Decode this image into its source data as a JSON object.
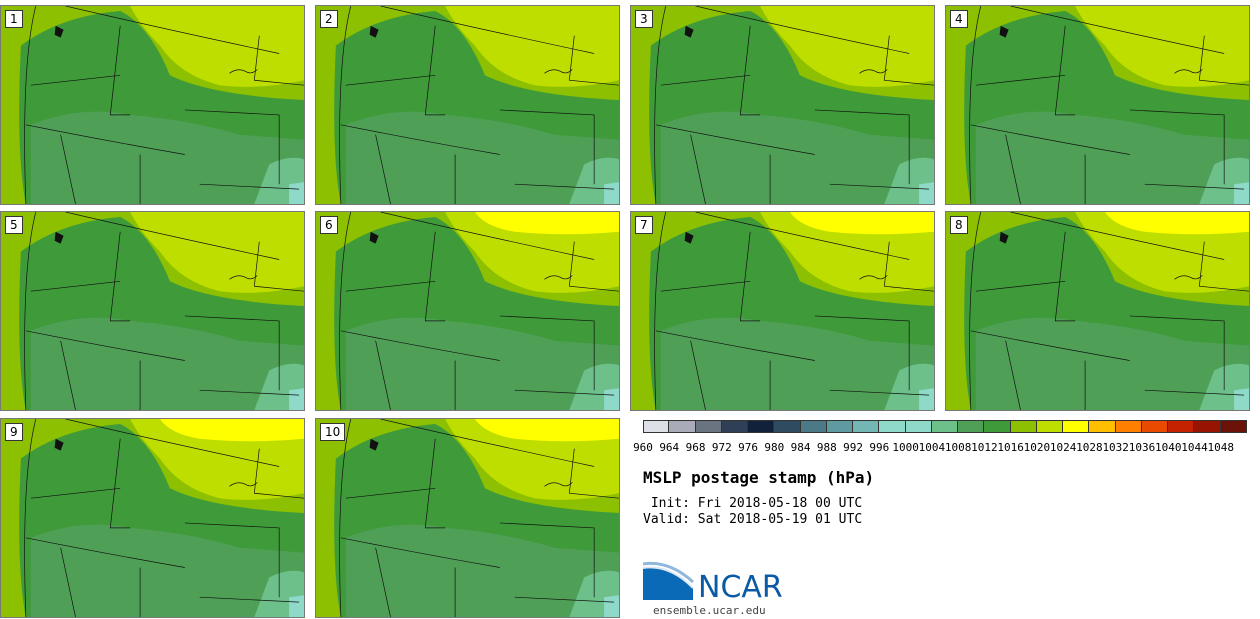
{
  "panels": [
    {
      "label": "1"
    },
    {
      "label": "2"
    },
    {
      "label": "3"
    },
    {
      "label": "4"
    },
    {
      "label": "5"
    },
    {
      "label": "6"
    },
    {
      "label": "7"
    },
    {
      "label": "8"
    },
    {
      "label": "9"
    },
    {
      "label": "10"
    }
  ],
  "colorbar": {
    "ticks": [
      "960",
      "964",
      "968",
      "972",
      "976",
      "980",
      "984",
      "988",
      "992",
      "996",
      "1000",
      "1004",
      "1008",
      "1012",
      "1016",
      "1020",
      "1024",
      "1028",
      "1032",
      "1036",
      "1040",
      "1044",
      "1048"
    ],
    "colors": [
      "#dde0e6",
      "#a9abb8",
      "#697480",
      "#2f3f55",
      "#12213a",
      "#2e4b5f",
      "#4b7a86",
      "#5e9aa0",
      "#74b6b4",
      "#8fd9c8",
      "#8fd9c8",
      "#6dc08a",
      "#4fa056",
      "#3f9a3a",
      "#8cc000",
      "#bede00",
      "#ffff00",
      "#ffbf00",
      "#ff8000",
      "#e84a00",
      "#c42200",
      "#961400",
      "#6b1209"
    ]
  },
  "title": "MSLP postage stamp (hPa)",
  "init": " Init: Fri 2018-05-18 00 UTC",
  "valid": "Valid: Sat 2018-05-19 01 UTC",
  "logo": {
    "text": "NCAR",
    "url": "ensemble.ucar.edu"
  }
}
